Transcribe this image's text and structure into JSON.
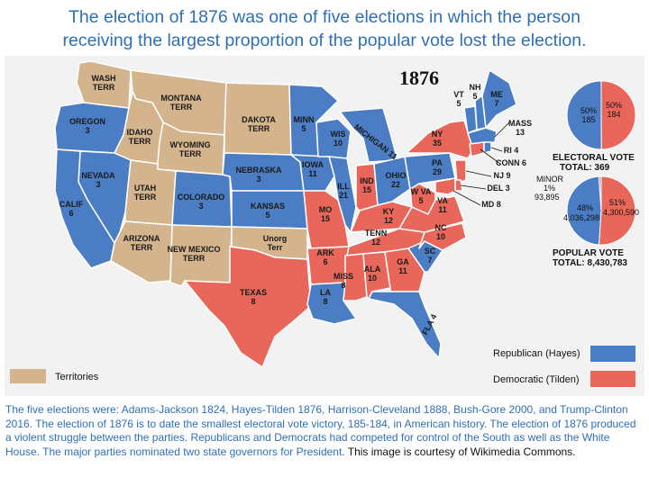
{
  "title": {
    "line1": "The election of 1876 was one of five elections in which the person",
    "line2": "receiving the largest proportion of the popular vote lost the election."
  },
  "map": {
    "year": "1876",
    "colors": {
      "republican": "#4a7dc4",
      "democratic": "#e8675a",
      "territory": "#d4b48c",
      "background": "#f2f2f2",
      "border": "#ffffff"
    },
    "states": [
      {
        "name": "WASH\nTERR",
        "party": "territory"
      },
      {
        "name": "MONTANA\nTERR",
        "party": "territory"
      },
      {
        "name": "OREGON\n3",
        "party": "republican"
      },
      {
        "name": "IDAHO\nTERR",
        "party": "territory"
      },
      {
        "name": "WYOMING\nTERR",
        "party": "territory"
      },
      {
        "name": "DAKOTA\nTERR",
        "party": "territory"
      },
      {
        "name": "NEVADA\n3",
        "party": "republican"
      },
      {
        "name": "UTAH\nTERR",
        "party": "territory"
      },
      {
        "name": "CALIF\n6",
        "party": "republican"
      },
      {
        "name": "COLORADO\n3",
        "party": "republican"
      },
      {
        "name": "NEBRASKA\n3",
        "party": "republican"
      },
      {
        "name": "KANSAS\n5",
        "party": "republican"
      },
      {
        "name": "ARIZONA\nTERR",
        "party": "territory"
      },
      {
        "name": "NEW MEXICO\nTERR",
        "party": "territory"
      },
      {
        "name": "Unorg\nTerr",
        "party": "territory"
      },
      {
        "name": "TEXAS\n8",
        "party": "democratic"
      },
      {
        "name": "MINN\n5",
        "party": "republican"
      },
      {
        "name": "IOWA\n11",
        "party": "republican"
      },
      {
        "name": "MO\n15",
        "party": "democratic"
      },
      {
        "name": "ARK\n6",
        "party": "democratic"
      },
      {
        "name": "LA\n8",
        "party": "republican"
      },
      {
        "name": "WIS\n10",
        "party": "republican"
      },
      {
        "name": "ILL\n21",
        "party": "republican"
      },
      {
        "name": "MICHIGAN 11",
        "party": "republican"
      },
      {
        "name": "IND\n15",
        "party": "democratic"
      },
      {
        "name": "OHIO\n22",
        "party": "republican"
      },
      {
        "name": "KY\n12",
        "party": "democratic"
      },
      {
        "name": "TENN\n12",
        "party": "democratic"
      },
      {
        "name": "MISS\n8",
        "party": "democratic"
      },
      {
        "name": "ALA\n10",
        "party": "democratic"
      },
      {
        "name": "GA\n11",
        "party": "democratic"
      },
      {
        "name": "FLA 4",
        "party": "republican"
      },
      {
        "name": "SC\n7",
        "party": "republican"
      },
      {
        "name": "NC\n10",
        "party": "democratic"
      },
      {
        "name": "VA\n11",
        "party": "democratic"
      },
      {
        "name": "W VA\n5",
        "party": "democratic"
      },
      {
        "name": "PA\n29",
        "party": "republican"
      },
      {
        "name": "NY\n35",
        "party": "democratic"
      },
      {
        "name": "VT\n5",
        "party": "republican"
      },
      {
        "name": "NH\n5",
        "party": "republican"
      },
      {
        "name": "ME\n7",
        "party": "republican"
      },
      {
        "name": "MASS\n13",
        "party": "republican"
      },
      {
        "name": "RI 4",
        "party": "republican"
      },
      {
        "name": "CONN 6",
        "party": "democratic"
      },
      {
        "name": "NJ 9",
        "party": "democratic"
      },
      {
        "name": "DEL 3",
        "party": "democratic"
      },
      {
        "name": "MD 8",
        "party": "democratic"
      }
    ],
    "electoral_vote": {
      "caption": "ELECTORAL VOTE",
      "total": "TOTAL:  369",
      "rep_pct": "50%",
      "rep_votes": "185",
      "dem_pct": "50%",
      "dem_votes": "184",
      "rep_value": 185,
      "dem_value": 184
    },
    "popular_vote": {
      "caption": "POPULAR VOTE",
      "total": "TOTAL:  8,430,783",
      "minor_label": "MINOR",
      "minor_pct": "1%",
      "minor_votes": "93,895",
      "rep_pct": "48%",
      "rep_votes": "4,036,298",
      "dem_pct": "51%",
      "dem_votes": "4,300,590",
      "rep_value": 4036298,
      "dem_value": 4300590,
      "minor_value": 93895
    },
    "legend": {
      "territories": "Territories",
      "republican": "Republican (Hayes)",
      "democratic": "Democratic (Tilden)"
    }
  },
  "caption": {
    "body": "The five elections  were: Adams-Jackson 1824, Hayes-Tilden 1876, Harrison-Cleveland 1888, Bush-Gore 2000, and Trump-Clinton 2016.  The election of 1876 is to date the smallest electoral vote victory, 185-184, in American history. The election of 1876 produced a violent struggle between the parties. Republicans and Democrats had competed for control of the South as well as the White House. The major parties nominated two state governors for President.",
    "credit": " This image is courtesy of Wikimedia Commons."
  }
}
